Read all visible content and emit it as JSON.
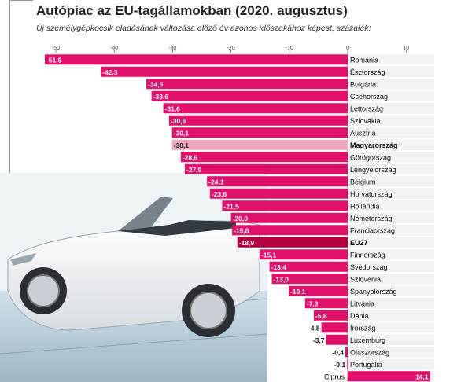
{
  "chart_data": {
    "type": "bar",
    "orientation": "horizontal",
    "title": "Autópiac az EU-tagállamokban (2020. augusztus)",
    "subtitle": "Új személygépkocsik eladásának változása előző év azonos időszakához képest, százalék:",
    "xlim": [
      -50,
      10
    ],
    "ticks": [
      -50,
      -40,
      -30,
      -20,
      -10,
      0,
      10
    ],
    "tick_labels": [
      "-50",
      "-40",
      "-30",
      "-20",
      "-10",
      "0",
      "10"
    ],
    "categories": [
      "Románia",
      "Észtország",
      "Bulgária",
      "Csehország",
      "Lettország",
      "Szlovákia",
      "Ausztria",
      "Magyarország",
      "Görögország",
      "Lengyelország",
      "Belgium",
      "Horvátország",
      "Hollandia",
      "Németország",
      "Franciaország",
      "EU27",
      "Finnország",
      "Svédország",
      "Szlovénia",
      "Spanyolország",
      "Litvánia",
      "Dánia",
      "Írország",
      "Luxemburg",
      "Olaszország",
      "Portugália",
      "Ciprus"
    ],
    "values": [
      -51.9,
      -42.3,
      -34.5,
      -33.6,
      -31.6,
      -30.6,
      -30.1,
      -30.1,
      -28.6,
      -27.9,
      -24.1,
      -23.6,
      -21.5,
      -20.0,
      -19.8,
      -18.9,
      -15.1,
      -13.4,
      -13.0,
      -10.1,
      -7.3,
      -5.8,
      -4.5,
      -3.7,
      -0.4,
      -0.1,
      14.1
    ],
    "value_labels": [
      "-51,9",
      "-42,3",
      "-34,5",
      "-33,6",
      "-31,6",
      "-30,6",
      "-30,1",
      "-30,1",
      "-28,6",
      "-27,9",
      "-24,1",
      "-23,6",
      "-21,5",
      "-20,0",
      "-19,8",
      "-18,9",
      "-15,1",
      "-13,4",
      "-13,0",
      "-10,1",
      "-7,3",
      "-5,8",
      "-4,5",
      "-3,7",
      "-0,4",
      "-0,1",
      "14,1"
    ],
    "highlight": [
      "Magyarország",
      "EU27"
    ],
    "colors": {
      "bar": "#e0106b",
      "bar_hungary": "#f0a6bf",
      "bar_eu": "#b0003f",
      "row_band": "#e3e3e3",
      "axis": "#666666"
    }
  }
}
